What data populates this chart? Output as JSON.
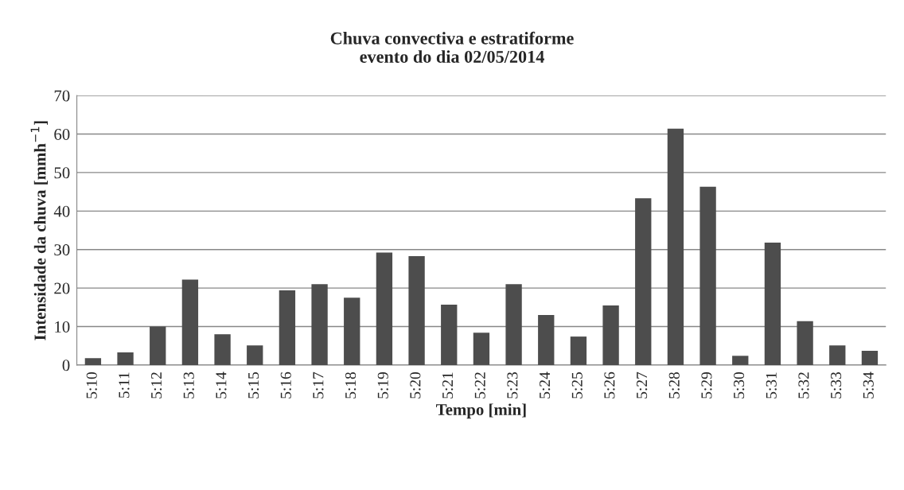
{
  "chart_data": {
    "type": "bar",
    "title": "Chuva convectiva e estratiforme\nevento do dia 02/05/2014",
    "xlabel": "Tempo [min]",
    "ylabel": "Intensidade da chuva [mmh$^{−1}$]",
    "categories": [
      "5:10",
      "5:11",
      "5:12",
      "5:13",
      "5:14",
      "5:15",
      "5:16",
      "5:17",
      "5:18",
      "5:19",
      "5:20",
      "5:21",
      "5:22",
      "5:23",
      "5:24",
      "5:25",
      "5:26",
      "5:27",
      "5:28",
      "5:29",
      "5:30",
      "5:31",
      "5:32",
      "5:33",
      "5:34"
    ],
    "values": [
      1.8,
      3.3,
      10,
      22.2,
      8,
      5.1,
      19.4,
      21,
      17.5,
      29.2,
      28.3,
      15.7,
      8.4,
      21,
      13,
      7.4,
      15.5,
      43.3,
      61.4,
      46.3,
      2.4,
      31.8,
      11.4,
      5.1,
      3.7
    ],
    "color": "#4d4d4d",
    "ylim": [
      0,
      70
    ],
    "yticks": [
      0,
      10,
      20,
      30,
      40,
      50,
      60,
      70
    ],
    "grid": "y",
    "legend": false
  }
}
